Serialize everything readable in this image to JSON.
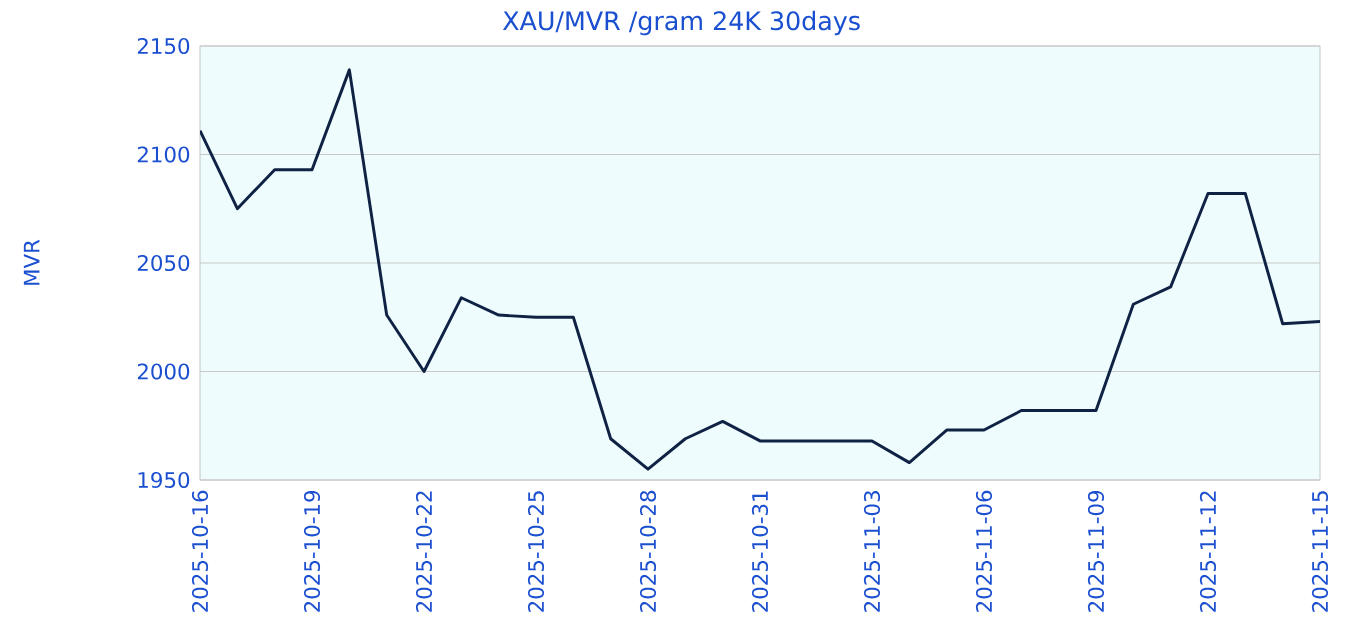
{
  "chart_data": {
    "type": "line",
    "title": "XAU/MVR /gram 24K 30days",
    "ylabel": "MVR",
    "x": [
      "2025-10-16",
      "2025-10-17",
      "2025-10-18",
      "2025-10-19",
      "2025-10-20",
      "2025-10-21",
      "2025-10-22",
      "2025-10-23",
      "2025-10-24",
      "2025-10-25",
      "2025-10-26",
      "2025-10-27",
      "2025-10-28",
      "2025-10-29",
      "2025-10-30",
      "2025-10-31",
      "2025-11-01",
      "2025-11-02",
      "2025-11-03",
      "2025-11-04",
      "2025-11-05",
      "2025-11-06",
      "2025-11-07",
      "2025-11-08",
      "2025-11-09",
      "2025-11-10",
      "2025-11-11",
      "2025-11-12",
      "2025-11-13",
      "2025-11-14",
      "2025-11-15"
    ],
    "series": [
      {
        "color": "#0f2244",
        "values": [
          2111,
          2075,
          2093,
          2093,
          2139,
          2026,
          2000,
          2034,
          2026,
          2025,
          2025,
          1969,
          1955,
          1969,
          1977,
          1968,
          1968,
          1968,
          1968,
          1958,
          1973,
          1973,
          1982,
          1982,
          1982,
          2031,
          2039,
          2082,
          2082,
          2022,
          2023
        ]
      }
    ],
    "xlim": [
      "2025-10-16",
      "2025-11-15"
    ],
    "xticks": [
      "2025-10-16",
      "2025-10-19",
      "2025-10-22",
      "2025-10-25",
      "2025-10-28",
      "2025-10-31",
      "2025-11-03",
      "2025-11-06",
      "2025-11-09",
      "2025-11-12",
      "2025-11-15"
    ],
    "ylim": [
      1950,
      2150
    ],
    "yticks": [
      1950,
      2000,
      2050,
      2100,
      2150
    ],
    "grid": "y",
    "marker": "none",
    "line_style": "solid"
  }
}
